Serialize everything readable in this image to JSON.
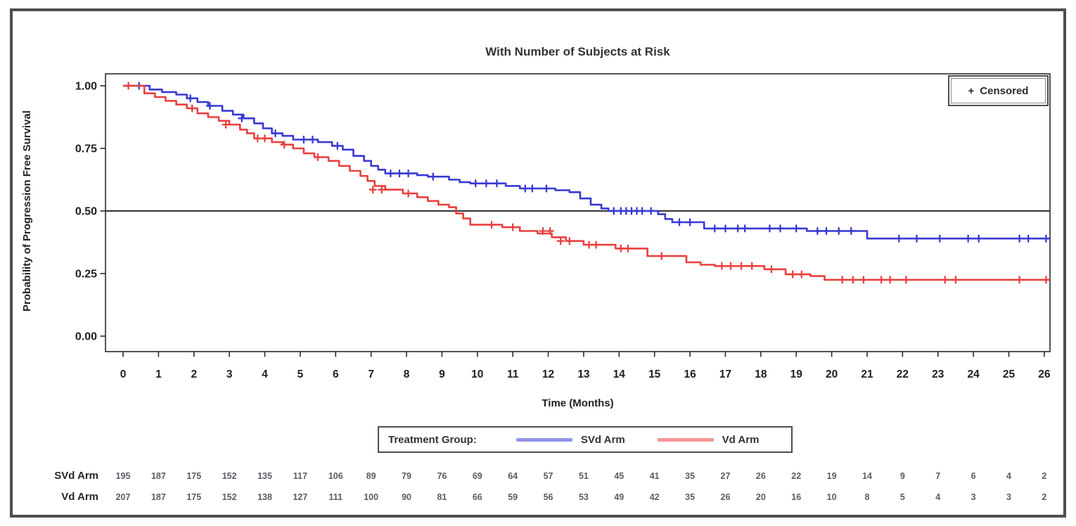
{
  "figure": {
    "border_color": "#4e4e4e",
    "background": "#ffffff"
  },
  "censored_legend": {
    "symbol": "+",
    "label": "Censored"
  },
  "treatment_legend": {
    "title": "Treatment Group:",
    "entries": [
      {
        "label": "SVd Arm",
        "color": "#3939d2"
      },
      {
        "label": "Vd Arm",
        "color": "#e94040"
      }
    ]
  },
  "chart_data": {
    "type": "line",
    "subtype": "kaplan-meier-step",
    "title": "With Number of Subjects at Risk",
    "xlabel": "Time (Months)",
    "ylabel": "Probability of Progression Free Survival",
    "xlim": [
      -0.5,
      26.6
    ],
    "ylim": [
      -0.06,
      1.06
    ],
    "x_ticks": [
      0,
      1,
      2,
      3,
      4,
      5,
      6,
      7,
      8,
      9,
      10,
      11,
      12,
      13,
      14,
      15,
      16,
      17,
      18,
      19,
      20,
      21,
      22,
      23,
      24,
      25,
      26
    ],
    "y_ticks": [
      {
        "v": 1.0,
        "label": "1.00"
      },
      {
        "v": 0.75,
        "label": "0.75"
      },
      {
        "v": 0.5,
        "label": "0.50"
      },
      {
        "v": 0.25,
        "label": "0.25"
      },
      {
        "v": 0.0,
        "label": "0.00"
      }
    ],
    "grid": false,
    "reference_line_y": 0.5,
    "end_time": 26.15,
    "legend_position": "bottom",
    "series": [
      {
        "name": "SVd Arm",
        "color": "#3939d2",
        "steps": [
          [
            0,
            1
          ],
          [
            0.75,
            0.985
          ],
          [
            1.1,
            0.975
          ],
          [
            1.5,
            0.965
          ],
          [
            1.8,
            0.95
          ],
          [
            2.1,
            0.935
          ],
          [
            2.4,
            0.92
          ],
          [
            2.8,
            0.9
          ],
          [
            3.1,
            0.885
          ],
          [
            3.4,
            0.87
          ],
          [
            3.7,
            0.85
          ],
          [
            3.95,
            0.83
          ],
          [
            4.2,
            0.81
          ],
          [
            4.5,
            0.8
          ],
          [
            4.8,
            0.785
          ],
          [
            5.5,
            0.775
          ],
          [
            5.9,
            0.76
          ],
          [
            6.2,
            0.745
          ],
          [
            6.5,
            0.72
          ],
          [
            6.8,
            0.7
          ],
          [
            7,
            0.68
          ],
          [
            7.2,
            0.665
          ],
          [
            7.4,
            0.65
          ],
          [
            8.3,
            0.643
          ],
          [
            8.6,
            0.637
          ],
          [
            9.2,
            0.625
          ],
          [
            9.5,
            0.615
          ],
          [
            9.8,
            0.61
          ],
          [
            10.8,
            0.6
          ],
          [
            11.2,
            0.59
          ],
          [
            12.2,
            0.583
          ],
          [
            12.6,
            0.575
          ],
          [
            12.9,
            0.55
          ],
          [
            13.2,
            0.525
          ],
          [
            13.5,
            0.51
          ],
          [
            13.7,
            0.5
          ],
          [
            15.1,
            0.487
          ],
          [
            15.3,
            0.468
          ],
          [
            15.5,
            0.455
          ],
          [
            16.4,
            0.43
          ],
          [
            19.3,
            0.42
          ],
          [
            21,
            0.39
          ]
        ],
        "censored": [
          [
            0.45,
            1
          ],
          [
            1.9,
            0.95
          ],
          [
            2.45,
            0.92
          ],
          [
            3.35,
            0.87
          ],
          [
            4.3,
            0.81
          ],
          [
            5.1,
            0.785
          ],
          [
            5.35,
            0.785
          ],
          [
            6.05,
            0.76
          ],
          [
            7.55,
            0.65
          ],
          [
            7.8,
            0.65
          ],
          [
            8.05,
            0.65
          ],
          [
            8.75,
            0.637
          ],
          [
            9.95,
            0.61
          ],
          [
            10.25,
            0.61
          ],
          [
            10.55,
            0.61
          ],
          [
            11.35,
            0.59
          ],
          [
            11.55,
            0.59
          ],
          [
            11.95,
            0.59
          ],
          [
            13.85,
            0.5
          ],
          [
            14.05,
            0.5
          ],
          [
            14.2,
            0.5
          ],
          [
            14.35,
            0.5
          ],
          [
            14.5,
            0.5
          ],
          [
            14.65,
            0.5
          ],
          [
            14.9,
            0.5
          ],
          [
            15.7,
            0.455
          ],
          [
            16,
            0.455
          ],
          [
            16.7,
            0.43
          ],
          [
            17,
            0.43
          ],
          [
            17.35,
            0.43
          ],
          [
            17.55,
            0.43
          ],
          [
            18.25,
            0.43
          ],
          [
            18.55,
            0.43
          ],
          [
            19,
            0.43
          ],
          [
            19.6,
            0.42
          ],
          [
            19.85,
            0.42
          ],
          [
            20.2,
            0.42
          ],
          [
            20.55,
            0.42
          ],
          [
            21.9,
            0.39
          ],
          [
            22.4,
            0.39
          ],
          [
            23.05,
            0.39
          ],
          [
            23.85,
            0.39
          ],
          [
            24.15,
            0.39
          ],
          [
            25.3,
            0.39
          ],
          [
            25.55,
            0.39
          ],
          [
            26.05,
            0.39
          ]
        ]
      },
      {
        "name": "Vd Arm",
        "color": "#e94040",
        "steps": [
          [
            0,
            1
          ],
          [
            0.6,
            0.97
          ],
          [
            0.9,
            0.955
          ],
          [
            1.2,
            0.94
          ],
          [
            1.5,
            0.925
          ],
          [
            1.8,
            0.91
          ],
          [
            2.1,
            0.89
          ],
          [
            2.4,
            0.875
          ],
          [
            2.7,
            0.86
          ],
          [
            3,
            0.845
          ],
          [
            3.3,
            0.825
          ],
          [
            3.5,
            0.81
          ],
          [
            3.7,
            0.79
          ],
          [
            4.2,
            0.775
          ],
          [
            4.5,
            0.765
          ],
          [
            4.8,
            0.75
          ],
          [
            5.1,
            0.73
          ],
          [
            5.4,
            0.715
          ],
          [
            5.8,
            0.7
          ],
          [
            6.1,
            0.68
          ],
          [
            6.4,
            0.66
          ],
          [
            6.7,
            0.64
          ],
          [
            6.9,
            0.62
          ],
          [
            7.1,
            0.6
          ],
          [
            7.4,
            0.585
          ],
          [
            7.9,
            0.57
          ],
          [
            8.3,
            0.555
          ],
          [
            8.6,
            0.54
          ],
          [
            8.9,
            0.525
          ],
          [
            9.2,
            0.515
          ],
          [
            9.4,
            0.49
          ],
          [
            9.6,
            0.47
          ],
          [
            9.8,
            0.445
          ],
          [
            10.7,
            0.435
          ],
          [
            11.2,
            0.42
          ],
          [
            11.7,
            0.41
          ],
          [
            12.1,
            0.395
          ],
          [
            12.5,
            0.38
          ],
          [
            13,
            0.365
          ],
          [
            13.9,
            0.35
          ],
          [
            14.8,
            0.32
          ],
          [
            15.9,
            0.295
          ],
          [
            16.3,
            0.285
          ],
          [
            16.7,
            0.28
          ],
          [
            18.1,
            0.267
          ],
          [
            18.7,
            0.247
          ],
          [
            19.4,
            0.24
          ],
          [
            19.8,
            0.225
          ]
        ],
        "censored": [
          [
            0.15,
            1
          ],
          [
            1.95,
            0.91
          ],
          [
            2.9,
            0.845
          ],
          [
            3.8,
            0.79
          ],
          [
            4,
            0.79
          ],
          [
            4.55,
            0.765
          ],
          [
            5.5,
            0.715
          ],
          [
            7.05,
            0.585
          ],
          [
            7.3,
            0.585
          ],
          [
            8.05,
            0.57
          ],
          [
            10.4,
            0.445
          ],
          [
            11,
            0.435
          ],
          [
            11.85,
            0.42
          ],
          [
            12.05,
            0.42
          ],
          [
            12.35,
            0.38
          ],
          [
            12.6,
            0.38
          ],
          [
            13.15,
            0.365
          ],
          [
            13.35,
            0.365
          ],
          [
            14.05,
            0.35
          ],
          [
            14.25,
            0.35
          ],
          [
            15.2,
            0.32
          ],
          [
            16.9,
            0.28
          ],
          [
            17.15,
            0.28
          ],
          [
            17.45,
            0.28
          ],
          [
            17.75,
            0.28
          ],
          [
            18.3,
            0.267
          ],
          [
            18.9,
            0.247
          ],
          [
            19.15,
            0.247
          ],
          [
            20.3,
            0.225
          ],
          [
            20.6,
            0.225
          ],
          [
            20.9,
            0.225
          ],
          [
            21.4,
            0.225
          ],
          [
            21.65,
            0.225
          ],
          [
            22.1,
            0.225
          ],
          [
            23.2,
            0.225
          ],
          [
            23.5,
            0.225
          ],
          [
            25.3,
            0.225
          ],
          [
            26.05,
            0.225
          ]
        ]
      }
    ],
    "at_risk": {
      "rows": [
        {
          "label": "SVd Arm",
          "values": [
            195,
            187,
            175,
            152,
            135,
            117,
            106,
            89,
            79,
            76,
            69,
            64,
            57,
            51,
            45,
            41,
            35,
            27,
            26,
            22,
            19,
            14,
            9,
            7,
            6,
            4,
            2
          ]
        },
        {
          "label": "Vd Arm",
          "values": [
            207,
            187,
            175,
            152,
            138,
            127,
            111,
            100,
            90,
            81,
            66,
            59,
            56,
            53,
            49,
            42,
            35,
            26,
            20,
            16,
            10,
            8,
            5,
            4,
            3,
            3,
            2
          ]
        }
      ]
    }
  }
}
